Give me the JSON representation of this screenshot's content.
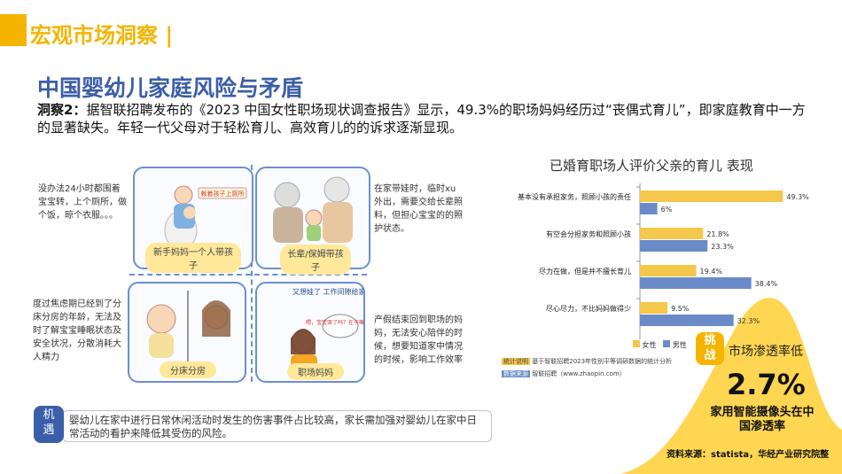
{
  "header": {
    "title": "宏观市场洞察 |"
  },
  "page": {
    "title": "中国婴幼儿家庭风险与矛盾"
  },
  "observation": {
    "label": "洞察2：",
    "text": "据智联招聘发布的《2023 中国女性职场现状调查报告》显示，49.3%的职场妈妈经历过“丧偶式育儿”，即家庭教育中一方的显著缺失。年轻一代父母对于轻松育儿、高效育儿的的诉求逐渐显现。"
  },
  "illustrations": {
    "top_left": {
      "label": "新手妈妈一个人带孩子",
      "sign": "赖着孩子上厕所",
      "side_text": "没办法24小时都围着宝宝转，上个厕所，做个饭，晾个衣服。。。"
    },
    "top_right": {
      "label": "长辈/保姆带孩子",
      "side_text": "在家带娃时，临时xu外出，需要交给长辈照料，但担心宝宝的的照护状态。"
    },
    "bottom_left": {
      "label": "分床分房",
      "side_text": "度过焦虑期已经到了分床分房的年龄，无法及时了解宝宝睡眠状态及安全状况，分散消耗大人精力"
    },
    "bottom_right": {
      "label": "职场妈妈",
      "sign": "又想娃了 工作间隙给家里打电话",
      "bubble": "喂，宝宝哭了吗？在干嘛呢？",
      "side_text": "产假结束回到职场的妈妈，无法安心陪伴的时候，想要知道家中情况的时候，影响工作效率"
    }
  },
  "chart_data": {
    "type": "bar",
    "orientation": "horizontal",
    "title": "已婚育职场人评价父亲的育儿 表现",
    "categories": [
      "基本没有承担家务，照顾小孩的责任",
      "有空会分担家务和照顾小孩",
      "尽力在做，但是并不擅长育儿",
      "尽心尽力，不比妈妈做得少"
    ],
    "series": [
      {
        "name": "女性",
        "color": "#f5c74a",
        "values": [
          49.3,
          21.8,
          19.4,
          9.5
        ],
        "labels": [
          "49.3%",
          "21.8%",
          "19.4%",
          "9.5%"
        ]
      },
      {
        "name": "男性",
        "color": "#6a8bc8",
        "values": [
          6,
          23.3,
          38.4,
          32.3
        ],
        "labels": [
          "6%",
          "23.3%",
          "38.4%",
          "32.3%"
        ]
      }
    ],
    "xlim": [
      0,
      55
    ],
    "notes": [
      {
        "key": "统计说明",
        "text": "基于智联招聘2023年性别平等调研数据的统计分析"
      },
      {
        "key": "数据来源",
        "text": "智联招聘（www.zhaopin.com）"
      }
    ]
  },
  "challenge": {
    "badge": "挑战",
    "text": "市场渗透率低",
    "value": "2.7%",
    "desc": "家用智能摄像头在中国渗透率",
    "source": "资料来源：statista，华经产业研究院整"
  },
  "opportunity": {
    "badge": "机遇",
    "text": "婴幼儿在家中进行日常休闲活动时发生的伤害事件占比较高，家长需加强对婴幼儿在家中日常活动的看护来降低其受伤的风险。"
  },
  "colors": {
    "accent": "#f4b400",
    "title_blue": "#3b5ea8",
    "female": "#f5c74a",
    "male": "#6a8bc8",
    "frame": "#6b8fd0"
  }
}
